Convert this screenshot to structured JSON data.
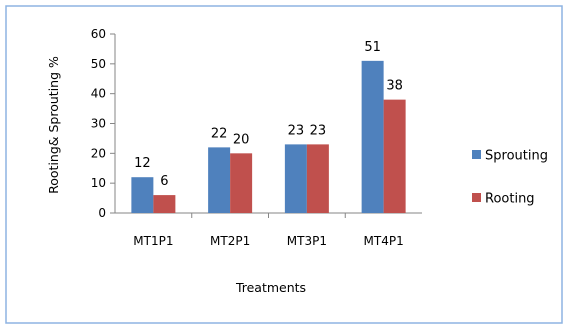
{
  "chart_data": {
    "type": "bar",
    "title": "",
    "xlabel": "Treatments",
    "ylabel": "Rooting& Sprouting %",
    "categories": [
      "MT1P1",
      "MT2P1",
      "MT3P1",
      "MT4P1"
    ],
    "series": [
      {
        "name": "Sprouting",
        "values": [
          12,
          22,
          23,
          51
        ],
        "data_labels": [
          "12",
          "22",
          "23",
          "51"
        ]
      },
      {
        "name": "Rooting",
        "values": [
          6,
          20,
          23,
          38
        ],
        "data_labels": [
          "6",
          "20",
          "23",
          "38"
        ]
      }
    ],
    "ylim": [
      0,
      60
    ],
    "yticks": [
      0,
      10,
      20,
      30,
      40,
      50,
      60
    ],
    "grid": false,
    "legend": "right"
  },
  "colors": {
    "series": [
      "#4F81BD",
      "#C0504D"
    ],
    "border": "#8DB3E2",
    "axis": "#868686"
  }
}
